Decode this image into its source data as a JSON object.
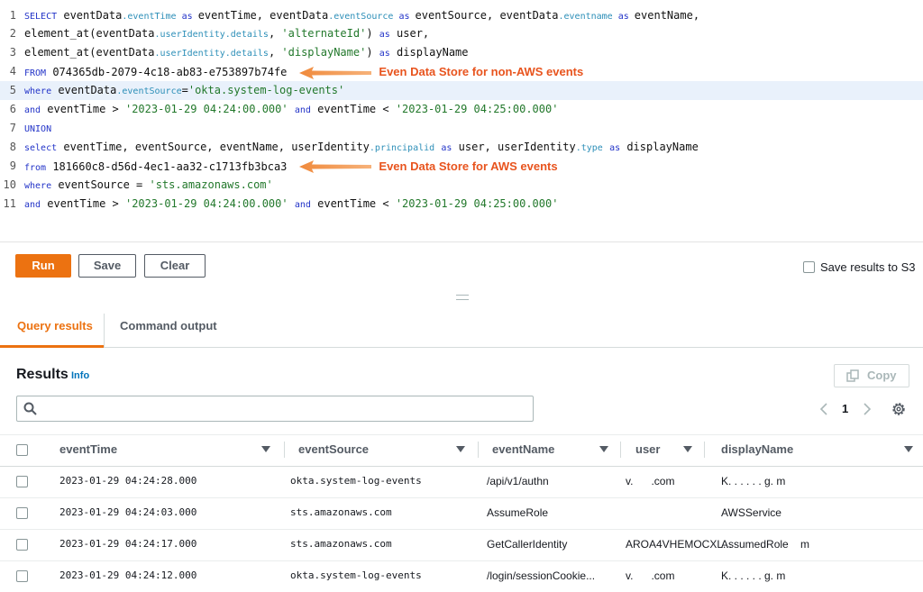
{
  "editor": {
    "lines": [
      {
        "number": 1,
        "tokens": [
          [
            "kw",
            "SELECT"
          ],
          [
            "id",
            " eventData"
          ],
          [
            "prop",
            ".eventTime"
          ],
          [
            "kw",
            " as "
          ],
          [
            "id",
            "eventTime, eventData"
          ],
          [
            "prop",
            ".eventSource"
          ],
          [
            "kw",
            " as "
          ],
          [
            "id",
            "eventSource, eventData"
          ],
          [
            "prop",
            ".eventname"
          ],
          [
            "kw",
            " as "
          ],
          [
            "id",
            "eventName,"
          ]
        ]
      },
      {
        "number": 2,
        "tokens": [
          [
            "id",
            "element_at(eventData"
          ],
          [
            "prop",
            ".userIdentity.details"
          ],
          [
            "id",
            ", "
          ],
          [
            "str",
            "'alternateId'"
          ],
          [
            "id",
            ") "
          ],
          [
            "kw",
            "as"
          ],
          [
            "id",
            " user,"
          ]
        ]
      },
      {
        "number": 3,
        "tokens": [
          [
            "id",
            "element_at(eventData"
          ],
          [
            "prop",
            ".userIdentity.details"
          ],
          [
            "id",
            ", "
          ],
          [
            "str",
            "'displayName'"
          ],
          [
            "id",
            ") "
          ],
          [
            "kw",
            "as"
          ],
          [
            "id",
            " displayName"
          ]
        ]
      },
      {
        "number": 4,
        "tokens": [
          [
            "kw",
            "FROM"
          ],
          [
            "id",
            " 074365db-2079-4c18-ab83-e753897b74fe"
          ]
        ],
        "annotation": "Even Data Store for non-AWS events"
      },
      {
        "number": 5,
        "tokens": [
          [
            "kw",
            "where"
          ],
          [
            "id",
            " eventData"
          ],
          [
            "prop",
            ".eventSource"
          ],
          [
            "id",
            "="
          ],
          [
            "str",
            "'okta.system-log-events'"
          ]
        ]
      },
      {
        "number": 6,
        "tokens": [
          [
            "kw",
            "and"
          ],
          [
            "id",
            " eventTime > "
          ],
          [
            "str",
            "'2023-01-29 04:24:00.000'"
          ],
          [
            "id",
            " "
          ],
          [
            "kw",
            "and"
          ],
          [
            "id",
            " eventTime < "
          ],
          [
            "str",
            "'2023-01-29 04:25:00.000'"
          ]
        ]
      },
      {
        "number": 7,
        "tokens": [
          [
            "kw",
            "UNION"
          ]
        ]
      },
      {
        "number": 8,
        "tokens": [
          [
            "kw",
            "select"
          ],
          [
            "id",
            " eventTime, eventSource, eventName, userIdentity"
          ],
          [
            "prop",
            ".principalid"
          ],
          [
            "id",
            " "
          ],
          [
            "kw",
            "as"
          ],
          [
            "id",
            " user, userIdentity"
          ],
          [
            "prop",
            ".type"
          ],
          [
            "id",
            " "
          ],
          [
            "kw",
            "as"
          ],
          [
            "id",
            " displayName"
          ]
        ]
      },
      {
        "number": 9,
        "tokens": [
          [
            "kw",
            "from"
          ],
          [
            "id",
            " 181660c8-d56d-4ec1-aa32-c1713fb3bca3"
          ]
        ],
        "annotation": "Even Data Store for AWS events"
      },
      {
        "number": 10,
        "tokens": [
          [
            "kw",
            "where"
          ],
          [
            "id",
            " eventSource = "
          ],
          [
            "str",
            "'sts.amazonaws.com'"
          ]
        ]
      },
      {
        "number": 11,
        "tokens": [
          [
            "kw",
            "and"
          ],
          [
            "id",
            " eventTime > "
          ],
          [
            "str",
            "'2023-01-29 04:24:00.000'"
          ],
          [
            "id",
            " "
          ],
          [
            "kw",
            "and"
          ],
          [
            "id",
            " eventTime < "
          ],
          [
            "str",
            "'2023-01-29 04:25:00.000'"
          ]
        ]
      }
    ]
  },
  "toolbar": {
    "run": "Run",
    "save": "Save",
    "clear": "Clear",
    "save_to_s3": "Save results to S3"
  },
  "tabs": [
    "Query results",
    "Command output"
  ],
  "results": {
    "title": "Results",
    "info": "Info",
    "copy": "Copy",
    "page": 1,
    "columns": [
      "eventTime",
      "eventSource",
      "eventName",
      "user",
      "displayName"
    ],
    "rows": [
      [
        "2023-01-29 04:24:28.000",
        "okta.system-log-events",
        "/api/v1/authn",
        "v.      .com",
        "K. . . . . . g. m"
      ],
      [
        "2023-01-29 04:24:03.000",
        "sts.amazonaws.com",
        "AssumeRole",
        null,
        "AWSService"
      ],
      [
        "2023-01-29 04:24:17.000",
        "sts.amazonaws.com",
        "GetCallerIdentity",
        "AROA4VHEMOCXL...",
        "AssumedRole    m"
      ],
      [
        "2023-01-29 04:24:12.000",
        "okta.system-log-events",
        "/login/sessionCookie...",
        "v.      .com",
        "K. . . . . . g. m"
      ]
    ]
  }
}
